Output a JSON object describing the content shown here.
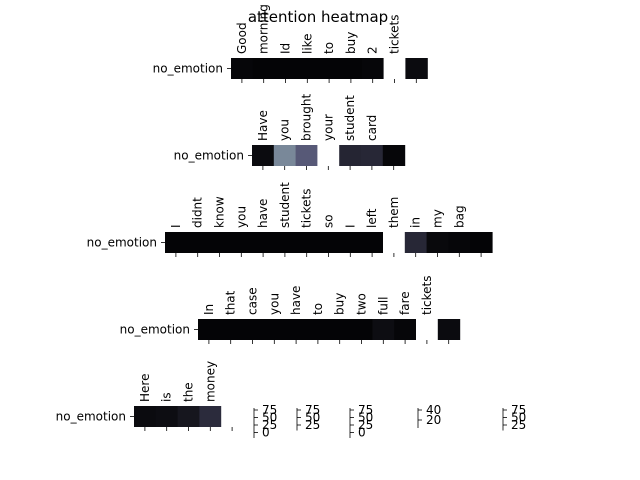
{
  "chart_data": {
    "type": "heatmap",
    "title": "attention heatmap",
    "colormap": "bone",
    "panels": [
      {
        "row_label": "no_emotion",
        "tokens": [
          "Good",
          "morning",
          "Id",
          "like",
          "to",
          "buy",
          "2",
          "tickets",
          ""
        ],
        "values": [
          0.03,
          0.02,
          0.02,
          0.02,
          0.02,
          0.02,
          0.03,
          1.0,
          0.05
        ]
      },
      {
        "row_label": "no_emotion",
        "tokens": [
          "Have",
          "you",
          "brought",
          "your",
          "student",
          "card",
          ""
        ],
        "values": [
          0.05,
          0.55,
          0.4,
          1.0,
          0.17,
          0.18,
          0.03
        ]
      },
      {
        "row_label": "no_emotion",
        "tokens": [
          "I",
          "didnt",
          "know",
          "you",
          "have",
          "student",
          "tickets",
          "so",
          "I",
          "left",
          "them",
          "in",
          "my",
          "bag",
          ""
        ],
        "values": [
          0.02,
          0.02,
          0.02,
          0.02,
          0.02,
          0.02,
          0.02,
          0.02,
          0.02,
          0.02,
          1.0,
          0.18,
          0.04,
          0.03,
          0.02
        ]
      },
      {
        "row_label": "no_emotion",
        "tokens": [
          "In",
          "that",
          "case",
          "you",
          "have",
          "to",
          "buy",
          "two",
          "full",
          "fare",
          "tickets",
          ""
        ],
        "values": [
          0.02,
          0.02,
          0.02,
          0.02,
          0.02,
          0.02,
          0.02,
          0.02,
          0.06,
          0.03,
          1.0,
          0.05
        ]
      },
      {
        "row_label": "no_emotion",
        "tokens": [
          "Here",
          "is",
          "the",
          "money",
          ""
        ],
        "values": [
          0.05,
          0.06,
          0.1,
          0.2,
          1.0
        ]
      }
    ],
    "colorbars": [
      {
        "ticks": [
          "75",
          "50",
          "25",
          "0"
        ]
      },
      {
        "ticks": [
          "75",
          "50",
          "25"
        ]
      },
      {
        "ticks": [
          "75",
          "50",
          "25",
          "0"
        ]
      },
      {
        "ticks": [
          "40",
          "20"
        ]
      },
      {
        "ticks": [
          "75",
          "50",
          "25"
        ]
      }
    ]
  }
}
